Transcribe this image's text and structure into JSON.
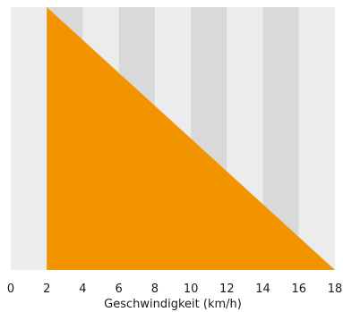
{
  "chart_data": {
    "type": "area",
    "xlabel": "Geschwindigkeit (km/h)",
    "ylabel": "",
    "title": "",
    "xlim": [
      0,
      18
    ],
    "x_ticks": [
      0,
      2,
      4,
      6,
      8,
      10,
      12,
      14,
      16,
      18
    ],
    "x_tick_labels": [
      "0",
      "2",
      "4",
      "6",
      "8",
      "10",
      "12",
      "14",
      "16",
      "18"
    ],
    "ylim": [
      0,
      1
    ],
    "grid": "alternating vertical bands",
    "series": [
      {
        "x": [
          2,
          18
        ],
        "y": [
          1,
          0
        ],
        "color": "#f29400"
      }
    ],
    "colors": {
      "band_light": "#ececec",
      "band_dark": "#d9d9d9",
      "fill": "#f29400"
    }
  }
}
